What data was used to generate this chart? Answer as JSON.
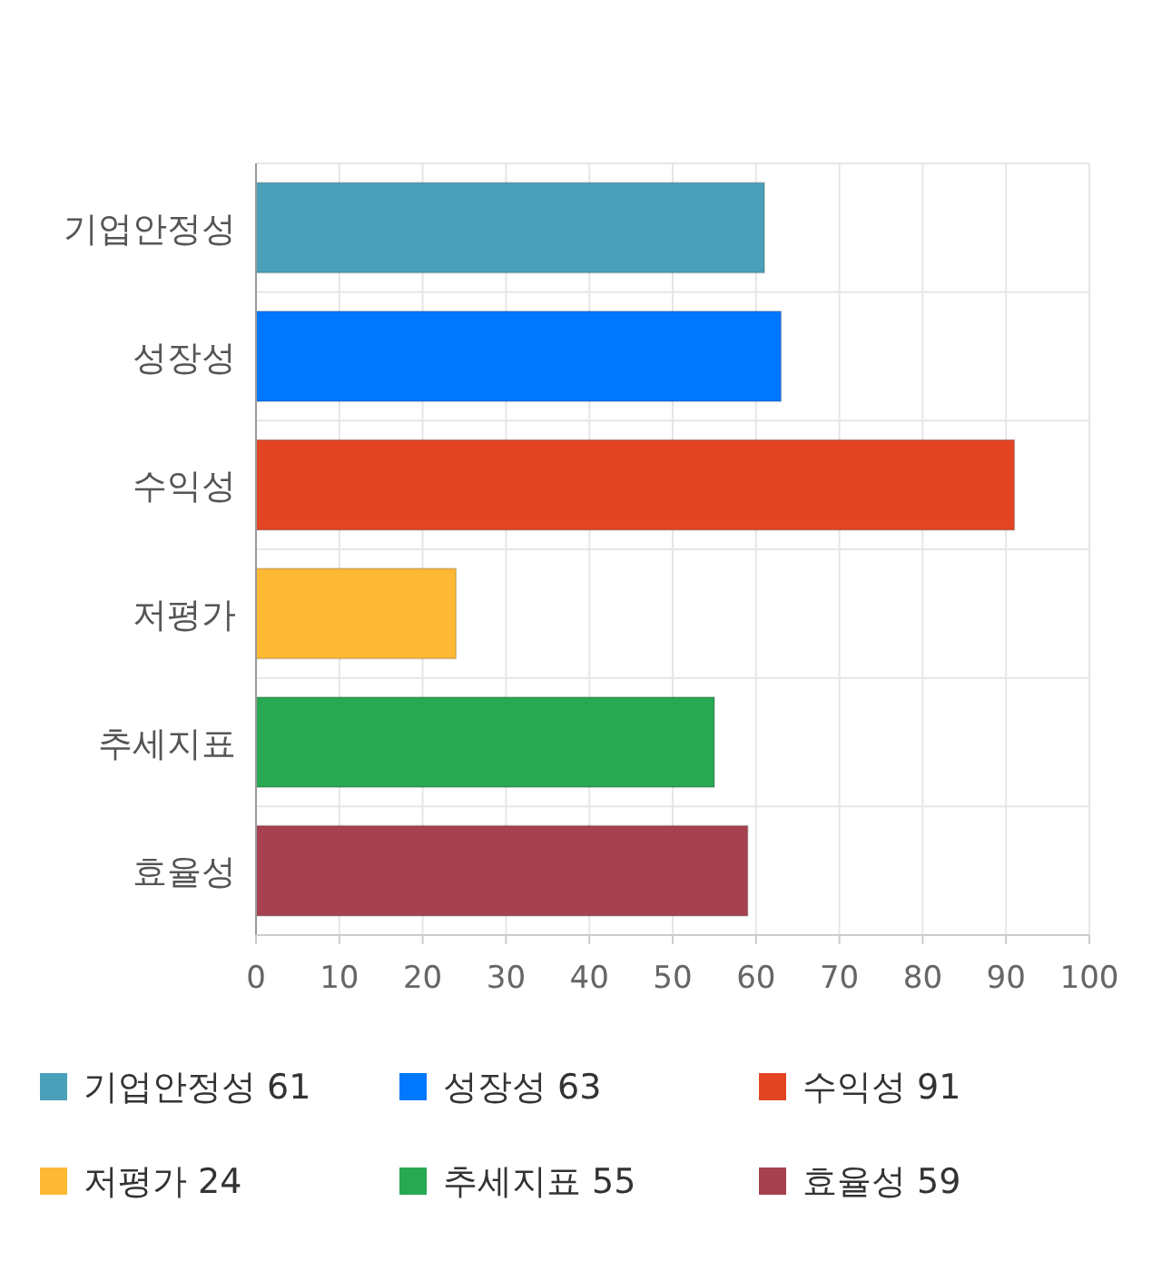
{
  "chart_data": {
    "type": "bar",
    "orientation": "horizontal",
    "categories": [
      "기업안정성",
      "성장성",
      "수익성",
      "저평가",
      "추세지표",
      "효율성"
    ],
    "series": [
      {
        "name": "기업안정성 61",
        "color": "#4aa0b9",
        "values": [
          61,
          null,
          null,
          null,
          null,
          null
        ]
      },
      {
        "name": "성장성 63",
        "color": "#0077ff",
        "values": [
          null,
          63,
          null,
          null,
          null,
          null
        ]
      },
      {
        "name": "수익성 91",
        "color": "#e34524",
        "values": [
          null,
          null,
          91,
          null,
          null,
          null
        ]
      },
      {
        "name": "저평가 24",
        "color": "#ffb833",
        "values": [
          null,
          null,
          null,
          24,
          null,
          null
        ]
      },
      {
        "name": "추세지표 55",
        "color": "#29a853",
        "values": [
          null,
          null,
          null,
          null,
          55,
          null
        ]
      },
      {
        "name": "효율성 59",
        "color": "#a7414f",
        "values": [
          null,
          null,
          null,
          null,
          null,
          59
        ]
      }
    ],
    "xlim": [
      0,
      100
    ],
    "xticks": [
      0,
      10,
      20,
      30,
      40,
      50,
      60,
      70,
      80,
      90,
      100
    ],
    "grid": true,
    "legend": "bottom"
  }
}
